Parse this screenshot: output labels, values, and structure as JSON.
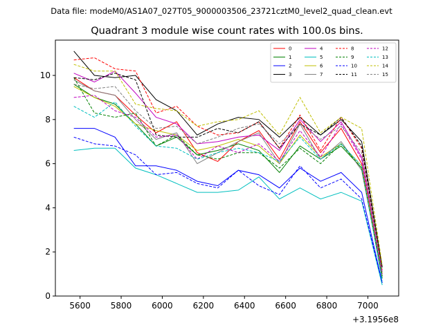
{
  "figure_title": "Data file: modeM0/AS1A07_027T05_9000003506_23721cztM0_level2_quad_clean.evt",
  "chart_data": {
    "type": "line",
    "title": "Quadrant 3 module wise count rates with 100.0s bins.",
    "xlabel": "",
    "ylabel": "",
    "x_offset_label": "+3.1956e8",
    "xlim": [
      5480,
      7150
    ],
    "ylim": [
      0,
      11.6
    ],
    "grid": false,
    "legend_position": "top-right",
    "xticks": [
      5600,
      5800,
      6000,
      6200,
      6400,
      6600,
      6800,
      7000
    ],
    "yticks": [
      0,
      2,
      4,
      6,
      8,
      10
    ],
    "x": [
      5570,
      5670,
      5770,
      5870,
      5970,
      6070,
      6170,
      6270,
      6370,
      6470,
      6570,
      6670,
      6770,
      6870,
      6970,
      7070
    ],
    "series": [
      {
        "name": "0",
        "color": "#ff0000",
        "dashed": false,
        "values": [
          9.9,
          9.3,
          9.1,
          8.2,
          7.4,
          7.9,
          6.5,
          6.1,
          7.0,
          7.5,
          6.2,
          7.9,
          6.5,
          7.6,
          6.0,
          1.0
        ]
      },
      {
        "name": "1",
        "color": "#008000",
        "dashed": false,
        "values": [
          9.6,
          9.0,
          8.7,
          7.8,
          6.8,
          7.2,
          6.4,
          6.6,
          6.9,
          6.6,
          5.6,
          6.8,
          6.2,
          6.8,
          5.8,
          0.8
        ]
      },
      {
        "name": "2",
        "color": "#0000ff",
        "dashed": false,
        "values": [
          7.6,
          7.6,
          7.2,
          5.9,
          5.9,
          5.7,
          5.2,
          5.0,
          5.7,
          5.5,
          4.9,
          5.8,
          5.2,
          5.6,
          4.7,
          0.6
        ]
      },
      {
        "name": "3",
        "color": "#000000",
        "dashed": false,
        "values": [
          11.1,
          10.0,
          9.9,
          10.0,
          8.9,
          8.4,
          7.3,
          7.8,
          8.1,
          8.0,
          7.2,
          8.1,
          7.3,
          8.0,
          7.0,
          1.3
        ]
      },
      {
        "name": "4",
        "color": "#bf00bf",
        "dashed": false,
        "values": [
          10.1,
          9.7,
          10.2,
          9.2,
          8.1,
          7.8,
          6.9,
          7.0,
          7.2,
          7.3,
          6.6,
          8.0,
          7.0,
          7.9,
          6.3,
          1.1
        ]
      },
      {
        "name": "5",
        "color": "#00bfbf",
        "dashed": false,
        "values": [
          6.6,
          6.7,
          6.7,
          5.8,
          5.5,
          5.1,
          4.7,
          4.7,
          4.8,
          5.4,
          4.4,
          4.9,
          4.4,
          4.7,
          4.3,
          0.5
        ]
      },
      {
        "name": "6",
        "color": "#bfbf00",
        "dashed": false,
        "values": [
          9.5,
          9.0,
          8.6,
          7.8,
          7.5,
          7.3,
          6.6,
          6.8,
          7.1,
          6.8,
          6.0,
          7.3,
          6.3,
          6.9,
          5.9,
          1.0
        ]
      },
      {
        "name": "7",
        "color": "#808080",
        "dashed": false,
        "values": [
          9.8,
          9.3,
          9.1,
          8.0,
          7.1,
          7.4,
          6.0,
          6.5,
          7.0,
          7.4,
          6.0,
          7.8,
          6.2,
          7.0,
          5.7,
          0.9
        ]
      },
      {
        "name": "8",
        "color": "#ff0000",
        "dashed": true,
        "values": [
          10.7,
          10.8,
          10.3,
          10.2,
          8.3,
          8.6,
          7.7,
          7.3,
          7.4,
          7.9,
          6.7,
          8.2,
          6.6,
          8.1,
          6.7,
          1.2
        ]
      },
      {
        "name": "9",
        "color": "#008000",
        "dashed": true,
        "values": [
          9.9,
          8.3,
          8.1,
          8.3,
          6.8,
          7.3,
          6.4,
          6.2,
          6.5,
          6.5,
          5.8,
          6.7,
          6.0,
          6.9,
          5.8,
          0.9
        ]
      },
      {
        "name": "10",
        "color": "#0000ff",
        "dashed": true,
        "values": [
          7.2,
          6.9,
          6.8,
          6.4,
          5.5,
          5.6,
          5.1,
          4.9,
          5.7,
          5.0,
          4.6,
          5.9,
          4.9,
          5.3,
          4.4,
          0.6
        ]
      },
      {
        "name": "11",
        "color": "#000000",
        "dashed": true,
        "values": [
          9.9,
          9.8,
          10.1,
          9.8,
          7.3,
          7.2,
          7.2,
          7.6,
          7.4,
          7.9,
          6.7,
          7.8,
          7.3,
          8.1,
          6.8,
          1.3
        ]
      },
      {
        "name": "12",
        "color": "#bf00bf",
        "dashed": true,
        "values": [
          9.0,
          9.1,
          8.4,
          8.1,
          7.2,
          7.3,
          6.2,
          6.8,
          6.5,
          6.9,
          6.1,
          7.5,
          6.3,
          7.8,
          6.2,
          1.0
        ]
      },
      {
        "name": "13",
        "color": "#00bfbf",
        "dashed": true,
        "values": [
          8.6,
          8.1,
          8.8,
          7.7,
          6.8,
          6.7,
          6.2,
          6.5,
          6.7,
          6.5,
          6.1,
          7.2,
          6.2,
          6.9,
          5.9,
          0.7
        ]
      },
      {
        "name": "14",
        "color": "#bfbf00",
        "dashed": true,
        "values": [
          10.5,
          10.2,
          10.2,
          8.7,
          8.5,
          8.4,
          7.7,
          7.9,
          8.0,
          8.4,
          7.3,
          9.0,
          7.4,
          8.1,
          7.6,
          1.4
        ]
      },
      {
        "name": "15",
        "color": "#808080",
        "dashed": true,
        "values": [
          9.6,
          9.4,
          9.5,
          8.4,
          7.6,
          7.7,
          6.9,
          7.2,
          7.6,
          7.8,
          6.9,
          7.8,
          7.1,
          7.7,
          6.5,
          1.1
        ]
      }
    ]
  }
}
